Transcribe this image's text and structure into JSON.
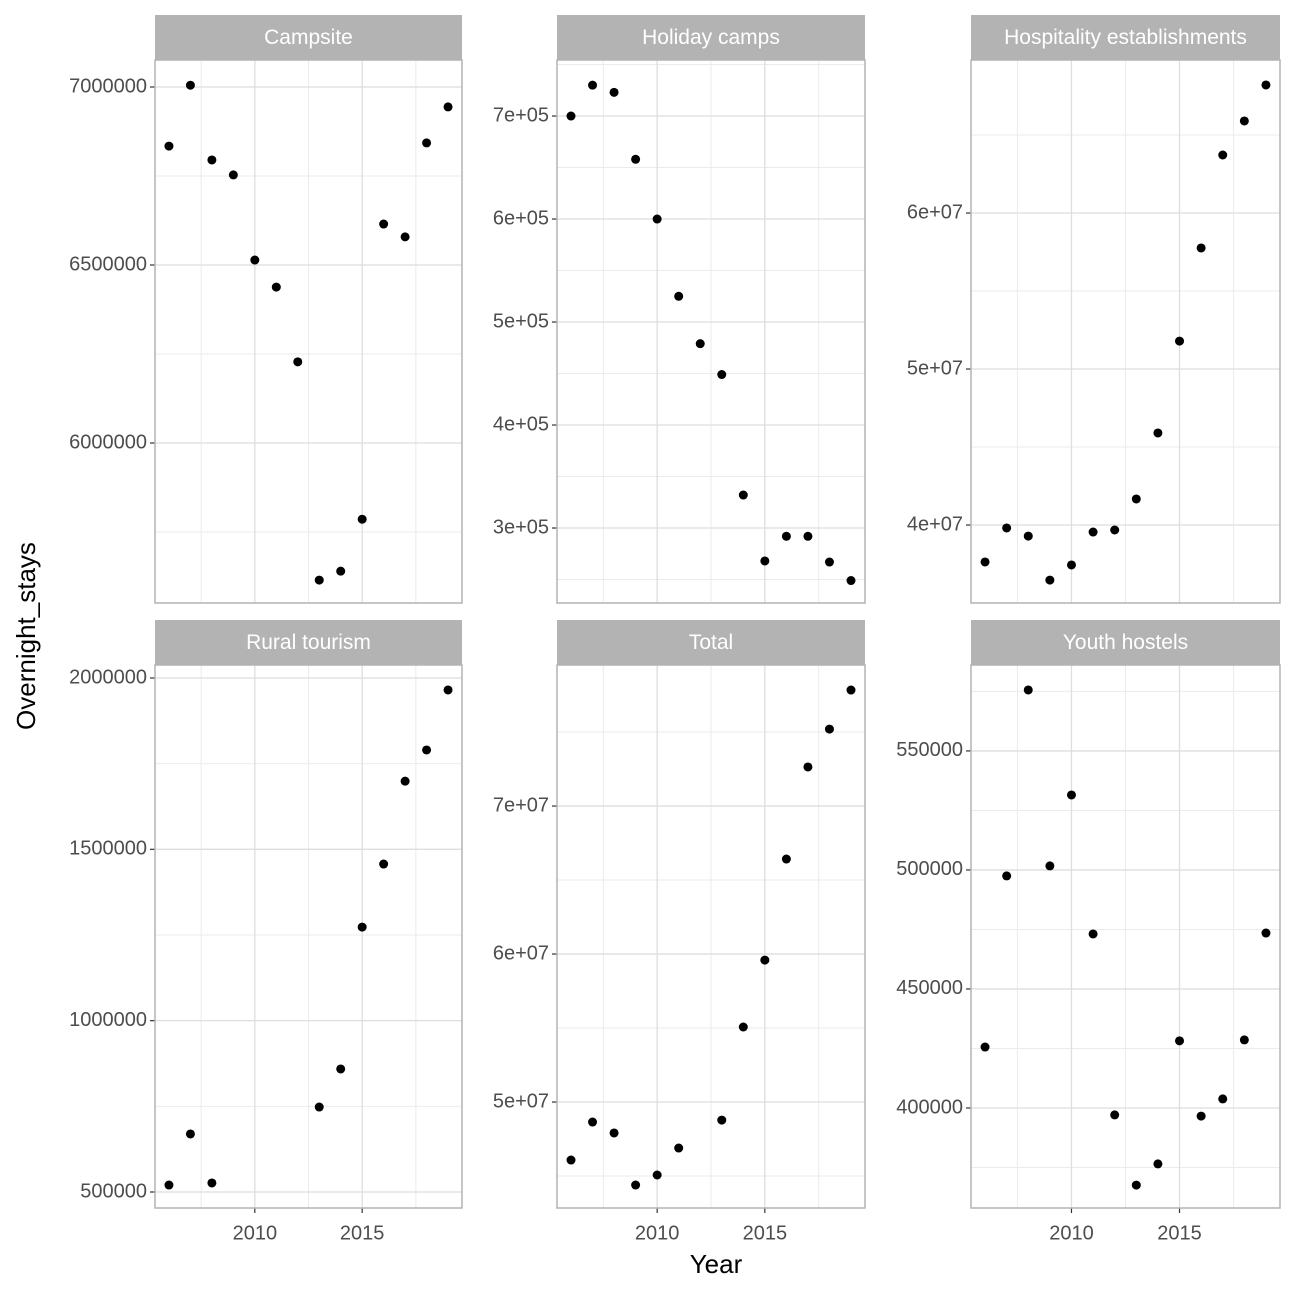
{
  "x_label": "Year",
  "y_label": "Overnight_stays",
  "chart_data": [
    {
      "type": "scatter",
      "title": "Campsite",
      "color": "#000000",
      "grid": true,
      "x": [
        2006,
        2007,
        2008,
        2009,
        2010,
        2011,
        2012,
        2013,
        2014,
        2015,
        2016,
        2017,
        2018,
        2019
      ],
      "values": [
        6834000,
        7005000,
        6795000,
        6753000,
        6514000,
        6438000,
        6228000,
        5615000,
        5640000,
        5786000,
        6615000,
        6579000,
        6843000,
        6944000
      ],
      "xlim": [
        2005.35,
        2019.65
      ],
      "xticks": [
        2010,
        2015
      ],
      "x_minor_ticks": [
        2007.5,
        2012.5,
        2017.5
      ],
      "ylim": [
        5550600,
        7075800
      ],
      "yticks": [
        6000000,
        6500000,
        7000000
      ],
      "y_minor_ticks": [
        5750000,
        6250000,
        6750000
      ]
    },
    {
      "type": "scatter",
      "title": "Holiday camps",
      "color": "#000000",
      "grid": true,
      "x": [
        2006,
        2007,
        2008,
        2009,
        2010,
        2011,
        2012,
        2013,
        2014,
        2015,
        2016,
        2017,
        2018,
        2019
      ],
      "values": [
        700000,
        730000,
        723000,
        658000,
        600000,
        525000,
        479000,
        449000,
        332000,
        268000,
        292000,
        292000,
        267000,
        249000
      ],
      "xlim": [
        2005.35,
        2019.65
      ],
      "xticks": [
        2010,
        2015
      ],
      "x_minor_ticks": [
        2007.5,
        2012.5,
        2017.5
      ],
      "ylim": [
        227200,
        754400
      ],
      "yticks": [
        {
          "value": 300000,
          "label": "3e+05"
        },
        {
          "value": 400000,
          "label": "4e+05"
        },
        {
          "value": 500000,
          "label": "5e+05"
        },
        {
          "value": 600000,
          "label": "6e+05"
        },
        {
          "value": 700000,
          "label": "7e+05"
        }
      ],
      "y_minor_ticks": [
        250000,
        350000,
        450000,
        550000,
        650000,
        750000
      ]
    },
    {
      "type": "scatter",
      "title": "Hospitality establishments",
      "color": "#000000",
      "grid": true,
      "x": [
        2006,
        2007,
        2008,
        2009,
        2010,
        2011,
        2012,
        2013,
        2014,
        2015,
        2016,
        2017,
        2018,
        2019
      ],
      "values": [
        37630000,
        39810000,
        39290000,
        36470000,
        37440000,
        39550000,
        39680000,
        41670000,
        45900000,
        51790000,
        57760000,
        63720000,
        65900000,
        68210000
      ],
      "xlim": [
        2005.35,
        2019.65
      ],
      "xticks": [
        2010,
        2015
      ],
      "x_minor_ticks": [
        2007.5,
        2012.5,
        2017.5
      ],
      "ylim": [
        35000000,
        69810000
      ],
      "yticks": [
        {
          "value": 40000000,
          "label": "4e+07"
        },
        {
          "value": 50000000,
          "label": "5e+07"
        },
        {
          "value": 60000000,
          "label": "6e+07"
        }
      ],
      "y_minor_ticks": [
        45000000,
        55000000,
        65000000
      ]
    },
    {
      "type": "scatter",
      "title": "Rural tourism",
      "color": "#000000",
      "grid": true,
      "x": [
        2006,
        2007,
        2008,
        2009,
        2010,
        2011,
        2012,
        2013,
        2014,
        2015,
        2016,
        2017,
        2018,
        2019
      ],
      "values": [
        520400,
        669300,
        526300,
        null,
        null,
        null,
        null,
        748000,
        859000,
        1273000,
        1457000,
        1699000,
        1790000,
        1965000
      ],
      "xlim": [
        2005.35,
        2019.65
      ],
      "xticks": [
        2010,
        2015
      ],
      "x_minor_ticks": [
        2007.5,
        2012.5,
        2017.5
      ],
      "ylim": [
        453300,
        2037900
      ],
      "yticks": [
        500000,
        1000000,
        1500000,
        2000000
      ],
      "y_minor_ticks": [
        750000,
        1250000,
        1750000
      ]
    },
    {
      "type": "scatter",
      "title": "Total",
      "color": "#000000",
      "grid": true,
      "x": [
        2006,
        2007,
        2008,
        2009,
        2010,
        2011,
        2012,
        2013,
        2014,
        2015,
        2016,
        2017,
        2018,
        2019
      ],
      "values": [
        46080000,
        48650000,
        47910000,
        44390000,
        45070000,
        46890000,
        null,
        48780000,
        55070000,
        59590000,
        66420000,
        72640000,
        75200000,
        77840000
      ],
      "xlim": [
        2005.35,
        2019.65
      ],
      "xticks": [
        2010,
        2015
      ],
      "x_minor_ticks": [
        2007.5,
        2012.5,
        2017.5
      ],
      "ylim": [
        42840000,
        79530000
      ],
      "yticks": [
        {
          "value": 50000000,
          "label": "5e+07"
        },
        {
          "value": 60000000,
          "label": "6e+07"
        },
        {
          "value": 70000000,
          "label": "7e+07"
        }
      ],
      "y_minor_ticks": [
        45000000,
        55000000,
        65000000,
        75000000
      ]
    },
    {
      "type": "scatter",
      "title": "Youth hostels",
      "color": "#000000",
      "grid": true,
      "x": [
        2006,
        2007,
        2008,
        2009,
        2010,
        2011,
        2012,
        2013,
        2014,
        2015,
        2016,
        2017,
        2018,
        2019
      ],
      "values": [
        425600,
        497500,
        575600,
        501700,
        531500,
        473100,
        397100,
        367600,
        376500,
        428200,
        396600,
        403800,
        428600,
        473500
      ],
      "xlim": [
        2005.35,
        2019.65
      ],
      "xticks": [
        2010,
        2015
      ],
      "x_minor_ticks": [
        2007.5,
        2012.5,
        2017.5
      ],
      "ylim": [
        357980,
        586100
      ],
      "yticks": [
        400000,
        450000,
        500000,
        550000
      ],
      "y_minor_ticks": [
        375000,
        425000,
        475000,
        525000,
        575000
      ]
    }
  ]
}
